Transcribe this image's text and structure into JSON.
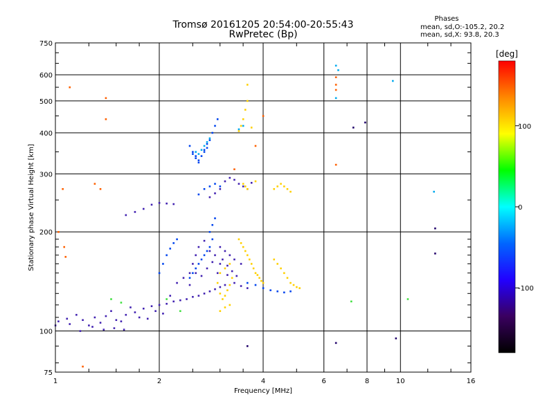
{
  "chart_data": {
    "type": "scatter",
    "title": "Tromsø 20161205 20:54:00-20:55:43",
    "subtitle": "RwPretec (Bp)",
    "xlabel": "Frequency [MHz]",
    "ylabel": "Stationary phase Virtual Height [km]",
    "x_scale": "log2",
    "y_scale": "log",
    "xlim": [
      1,
      16
    ],
    "ylim": [
      75,
      750
    ],
    "x_ticks": [
      "1",
      "2",
      "4",
      "6",
      "8",
      "10",
      "16"
    ],
    "y_ticks": [
      "75",
      "100",
      "200",
      "300",
      "400",
      "500",
      "600",
      "750"
    ],
    "grid": true,
    "phase_stats": {
      "heading": "Phases",
      "line1": "mean, sd,O:-105.2, 20.2",
      "line2": "mean, sd,X:  93.8, 20.3"
    },
    "colorbar": {
      "label": "[deg]",
      "ticks": [
        "100",
        "0",
        "-100"
      ],
      "tick_values": [
        100,
        0,
        -100
      ],
      "range": [
        -180,
        180
      ],
      "colors": [
        "#000000",
        "#3a0060",
        "#2200ff",
        "#0066ff",
        "#00ffff",
        "#00ff00",
        "#ffff00",
        "#ff8800",
        "#ff0000"
      ]
    },
    "series": [
      {
        "phase": -110,
        "color": "#4020b0",
        "points": [
          [
            1.02,
            107
          ],
          [
            1.1,
            105
          ],
          [
            1.2,
            108
          ],
          [
            1.3,
            110
          ],
          [
            1.4,
            111
          ],
          [
            1.5,
            108
          ],
          [
            1.6,
            112
          ],
          [
            1.7,
            114
          ],
          [
            1.8,
            117
          ],
          [
            1.9,
            119
          ],
          [
            2.0,
            120
          ],
          [
            2.1,
            121
          ],
          [
            2.2,
            123
          ],
          [
            2.3,
            124
          ],
          [
            2.4,
            125
          ],
          [
            2.5,
            127
          ],
          [
            2.6,
            128
          ],
          [
            2.7,
            130
          ],
          [
            2.8,
            132
          ],
          [
            2.9,
            134
          ],
          [
            3.0,
            136
          ],
          [
            3.1,
            138
          ],
          [
            1.15,
            112
          ],
          [
            1.25,
            104
          ],
          [
            1.35,
            106
          ],
          [
            1.45,
            115
          ],
          [
            1.55,
            107
          ],
          [
            1.65,
            118
          ],
          [
            1.75,
            110
          ],
          [
            1.85,
            109
          ],
          [
            1.95,
            115
          ],
          [
            2.05,
            113
          ],
          [
            2.15,
            128
          ],
          [
            2.25,
            140
          ],
          [
            2.35,
            145
          ],
          [
            2.45,
            138
          ],
          [
            2.55,
            150
          ],
          [
            2.65,
            147
          ],
          [
            2.75,
            155
          ],
          [
            2.85,
            162
          ],
          [
            2.95,
            150
          ],
          [
            3.05,
            165
          ],
          [
            3.15,
            158
          ],
          [
            3.25,
            152
          ],
          [
            3.35,
            147
          ],
          [
            3.45,
            160
          ],
          [
            1.6,
            225
          ],
          [
            1.7,
            230
          ],
          [
            1.8,
            235
          ],
          [
            1.9,
            242
          ],
          [
            2.0,
            245
          ],
          [
            2.1,
            244
          ],
          [
            2.2,
            243
          ],
          [
            2.8,
            255
          ],
          [
            2.9,
            262
          ],
          [
            3.0,
            270
          ],
          [
            3.1,
            285
          ],
          [
            3.2,
            292
          ],
          [
            3.3,
            288
          ],
          [
            3.4,
            280
          ],
          [
            3.5,
            275
          ],
          [
            3.6,
            270
          ],
          [
            3.7,
            282
          ],
          [
            2.45,
            150
          ],
          [
            2.5,
            160
          ],
          [
            2.55,
            170
          ],
          [
            2.6,
            180
          ],
          [
            2.7,
            188
          ],
          [
            2.8,
            175
          ],
          [
            2.9,
            170
          ],
          [
            3.0,
            160
          ],
          [
            3.15,
            148
          ],
          [
            3.3,
            140
          ],
          [
            3.45,
            137
          ],
          [
            3.6,
            135
          ],
          [
            3.0,
            180
          ],
          [
            3.1,
            175
          ],
          [
            3.2,
            170
          ],
          [
            3.3,
            165
          ],
          [
            1.0,
            104
          ],
          [
            1.08,
            109
          ],
          [
            1.18,
            100
          ],
          [
            1.28,
            103
          ],
          [
            1.38,
            101
          ],
          [
            1.48,
            102
          ],
          [
            1.58,
            101
          ]
        ]
      },
      {
        "phase": -95,
        "color": "#0044ee",
        "points": [
          [
            2.45,
            365
          ],
          [
            2.5,
            345
          ],
          [
            2.55,
            335
          ],
          [
            2.6,
            330
          ],
          [
            2.65,
            340
          ],
          [
            2.7,
            355
          ],
          [
            2.75,
            370
          ],
          [
            2.8,
            380
          ],
          [
            2.85,
            400
          ],
          [
            2.9,
            420
          ],
          [
            2.95,
            440
          ],
          [
            2.7,
            350
          ],
          [
            2.75,
            360
          ],
          [
            2.6,
            325
          ],
          [
            2.55,
            340
          ],
          [
            2.5,
            350
          ],
          [
            2.6,
            260
          ],
          [
            2.7,
            270
          ],
          [
            2.8,
            275
          ],
          [
            2.9,
            280
          ],
          [
            3.0,
            275
          ],
          [
            2.8,
            200
          ],
          [
            2.85,
            210
          ],
          [
            2.9,
            220
          ],
          [
            2.85,
            190
          ],
          [
            2.8,
            180
          ],
          [
            2.75,
            175
          ],
          [
            2.7,
            170
          ],
          [
            2.65,
            165
          ],
          [
            2.6,
            160
          ],
          [
            2.55,
            155
          ],
          [
            2.5,
            150
          ],
          [
            2.45,
            145
          ],
          [
            3.6,
            140
          ],
          [
            3.8,
            138
          ],
          [
            4.0,
            135
          ],
          [
            4.2,
            133
          ],
          [
            4.4,
            132
          ],
          [
            4.6,
            131
          ],
          [
            4.8,
            132
          ],
          [
            2.0,
            150
          ],
          [
            2.05,
            160
          ],
          [
            2.1,
            170
          ],
          [
            2.15,
            178
          ],
          [
            2.2,
            185
          ],
          [
            2.25,
            190
          ]
        ]
      },
      {
        "phase": -75,
        "color": "#00aaee",
        "points": [
          [
            2.55,
            350
          ],
          [
            2.6,
            345
          ],
          [
            2.65,
            355
          ],
          [
            2.7,
            365
          ],
          [
            2.75,
            375
          ],
          [
            2.8,
            385
          ],
          [
            3.4,
            410
          ],
          [
            3.5,
            420
          ],
          [
            6.5,
            640
          ],
          [
            6.5,
            510
          ],
          [
            9.5,
            575
          ],
          [
            12.5,
            265
          ],
          [
            6.6,
            620
          ]
        ]
      },
      {
        "phase": 95,
        "color": "#ffd000",
        "points": [
          [
            3.6,
            560
          ],
          [
            3.6,
            500
          ],
          [
            3.55,
            470
          ],
          [
            3.5,
            440
          ],
          [
            3.45,
            420
          ],
          [
            3.4,
            405
          ],
          [
            3.7,
            415
          ],
          [
            3.5,
            280
          ],
          [
            3.55,
            275
          ],
          [
            3.6,
            270
          ],
          [
            3.8,
            285
          ],
          [
            4.3,
            270
          ],
          [
            4.4,
            275
          ],
          [
            4.5,
            280
          ],
          [
            4.6,
            275
          ],
          [
            4.7,
            270
          ],
          [
            4.8,
            265
          ],
          [
            3.4,
            190
          ],
          [
            3.45,
            185
          ],
          [
            3.5,
            180
          ],
          [
            3.55,
            175
          ],
          [
            3.6,
            170
          ],
          [
            3.65,
            165
          ],
          [
            3.7,
            160
          ],
          [
            3.75,
            155
          ],
          [
            3.8,
            150
          ],
          [
            3.85,
            148
          ],
          [
            3.9,
            145
          ],
          [
            3.95,
            142
          ],
          [
            4.0,
            140
          ],
          [
            4.3,
            165
          ],
          [
            4.4,
            160
          ],
          [
            4.5,
            155
          ],
          [
            4.6,
            150
          ],
          [
            4.7,
            145
          ],
          [
            4.8,
            140
          ],
          [
            4.9,
            138
          ],
          [
            5.0,
            136
          ],
          [
            5.1,
            135
          ],
          [
            3.0,
            130
          ],
          [
            3.05,
            125
          ],
          [
            3.1,
            128
          ],
          [
            3.15,
            133
          ],
          [
            3.2,
            138
          ],
          [
            3.25,
            145
          ],
          [
            3.0,
            115
          ],
          [
            3.1,
            118
          ],
          [
            3.2,
            120
          ],
          [
            2.95,
            140
          ],
          [
            3.0,
            150
          ],
          [
            3.1,
            155
          ],
          [
            3.2,
            160
          ]
        ]
      },
      {
        "phase": 140,
        "color": "#ff6000",
        "points": [
          [
            1.1,
            550
          ],
          [
            1.05,
            270
          ],
          [
            1.02,
            200
          ],
          [
            1.06,
            180
          ],
          [
            1.07,
            168
          ],
          [
            1.4,
            510
          ],
          [
            1.4,
            440
          ],
          [
            1.35,
            270
          ],
          [
            1.3,
            280
          ],
          [
            1.2,
            78
          ],
          [
            6.5,
            590
          ],
          [
            6.5,
            560
          ],
          [
            6.5,
            540
          ],
          [
            6.5,
            320
          ],
          [
            3.8,
            365
          ],
          [
            4.0,
            450
          ],
          [
            3.3,
            310
          ]
        ]
      },
      {
        "phase": -150,
        "color": "#20006a",
        "points": [
          [
            3.6,
            90
          ],
          [
            6.5,
            92
          ],
          [
            7.3,
            415
          ],
          [
            7.9,
            430
          ],
          [
            9.7,
            95
          ],
          [
            12.6,
            205
          ],
          [
            12.6,
            172
          ]
        ]
      },
      {
        "phase": 20,
        "color": "#40e040",
        "points": [
          [
            1.45,
            125
          ],
          [
            1.55,
            122
          ],
          [
            2.1,
            125
          ],
          [
            2.3,
            115
          ],
          [
            10.5,
            125
          ],
          [
            7.2,
            123
          ]
        ]
      }
    ]
  }
}
